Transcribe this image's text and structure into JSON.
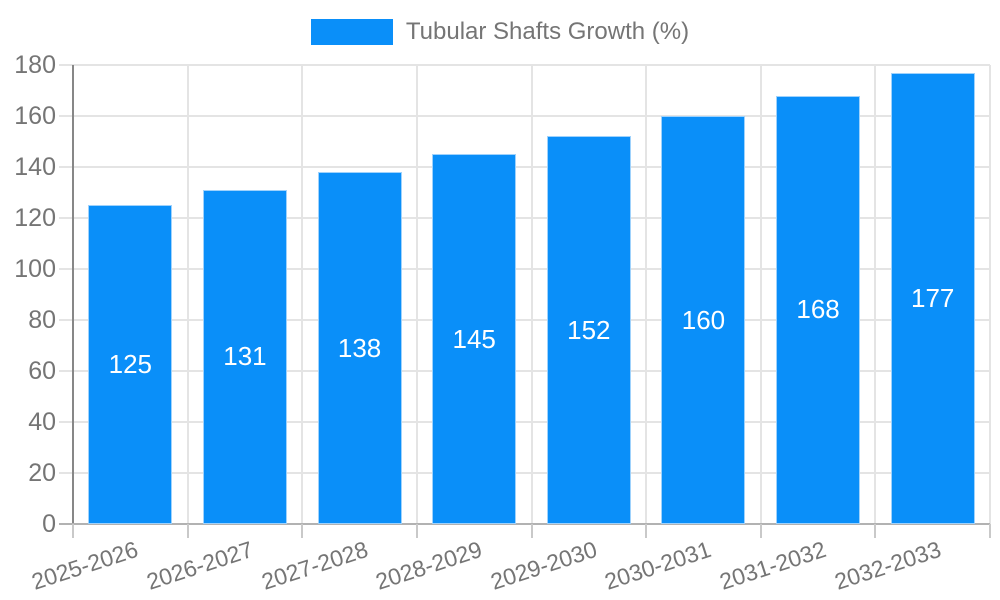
{
  "legend": {
    "label": "Tubular Shafts Growth (%)"
  },
  "colors": {
    "bar": "#0A8FF9",
    "bar_border": "#9FD2FC",
    "value_label": "#FFFFFF",
    "text": "#757575",
    "grid": "#E4E4E4",
    "tick": "#C9C9C9",
    "axis_y": "#878787",
    "axis_x": "#B2B2B2",
    "background": "#FFFFFF"
  },
  "chart_data": {
    "type": "bar",
    "title": "Tubular Shafts Growth (%)",
    "categories": [
      "2025-2026",
      "2026-2027",
      "2027-2028",
      "2028-2029",
      "2029-2030",
      "2030-2031",
      "2031-2032",
      "2032-2033"
    ],
    "values": [
      125,
      131,
      138,
      145,
      152,
      160,
      168,
      177
    ],
    "series": [
      {
        "name": "Tubular Shafts Growth (%)",
        "values": [
          125,
          131,
          138,
          145,
          152,
          160,
          168,
          177
        ]
      }
    ],
    "xlabel": "",
    "ylabel": "",
    "ylim": [
      0,
      180
    ],
    "ytick_step": 20,
    "grid": true,
    "legend_position": "top-center",
    "value_labels": "inside-center",
    "x_label_rotation_deg": -18
  }
}
